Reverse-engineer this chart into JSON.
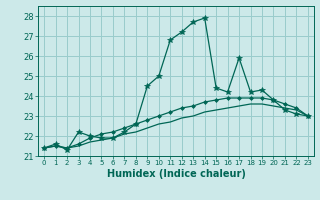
{
  "xlabel": "Humidex (Indice chaleur)",
  "background_color": "#cce9e9",
  "grid_color": "#99cccc",
  "line_color": "#006655",
  "xlim": [
    -0.5,
    23.5
  ],
  "ylim": [
    21.0,
    28.5
  ],
  "yticks": [
    21,
    22,
    23,
    24,
    25,
    26,
    27,
    28
  ],
  "xticks": [
    0,
    1,
    2,
    3,
    4,
    5,
    6,
    7,
    8,
    9,
    10,
    11,
    12,
    13,
    14,
    15,
    16,
    17,
    18,
    19,
    20,
    21,
    22,
    23
  ],
  "line1": [
    21.4,
    21.6,
    21.3,
    22.2,
    22.0,
    21.9,
    21.9,
    22.2,
    22.6,
    24.5,
    25.0,
    26.8,
    27.2,
    27.7,
    27.9,
    24.4,
    24.2,
    25.9,
    24.2,
    24.3,
    23.8,
    23.3,
    23.1,
    23.0
  ],
  "line2": [
    21.4,
    21.5,
    21.4,
    21.6,
    21.9,
    22.1,
    22.2,
    22.4,
    22.6,
    22.8,
    23.0,
    23.2,
    23.4,
    23.5,
    23.7,
    23.8,
    23.9,
    23.9,
    23.9,
    23.9,
    23.8,
    23.6,
    23.4,
    23.0
  ],
  "line3": [
    21.4,
    21.5,
    21.4,
    21.5,
    21.7,
    21.8,
    21.9,
    22.1,
    22.2,
    22.4,
    22.6,
    22.7,
    22.9,
    23.0,
    23.2,
    23.3,
    23.4,
    23.5,
    23.6,
    23.6,
    23.5,
    23.4,
    23.3,
    23.0
  ]
}
